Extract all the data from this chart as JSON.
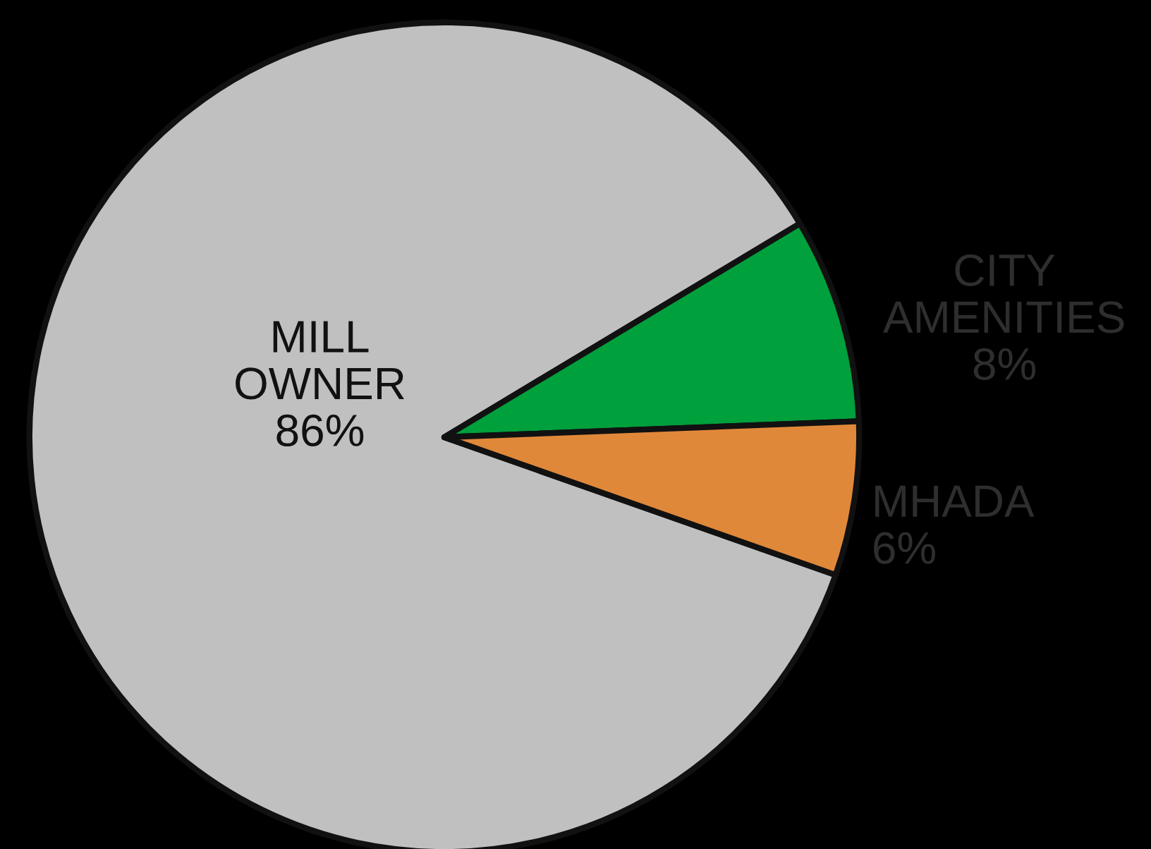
{
  "chart_data": {
    "type": "pie",
    "categories": [
      "MILL OWNER",
      "CITY AMENITIES",
      "MHADA"
    ],
    "values": [
      86,
      8,
      6
    ],
    "value_labels": [
      "86%",
      "8%",
      "6%"
    ],
    "colors": [
      "#c0c0c0",
      "#00a03c",
      "#e0883a"
    ],
    "legend": false
  }
}
